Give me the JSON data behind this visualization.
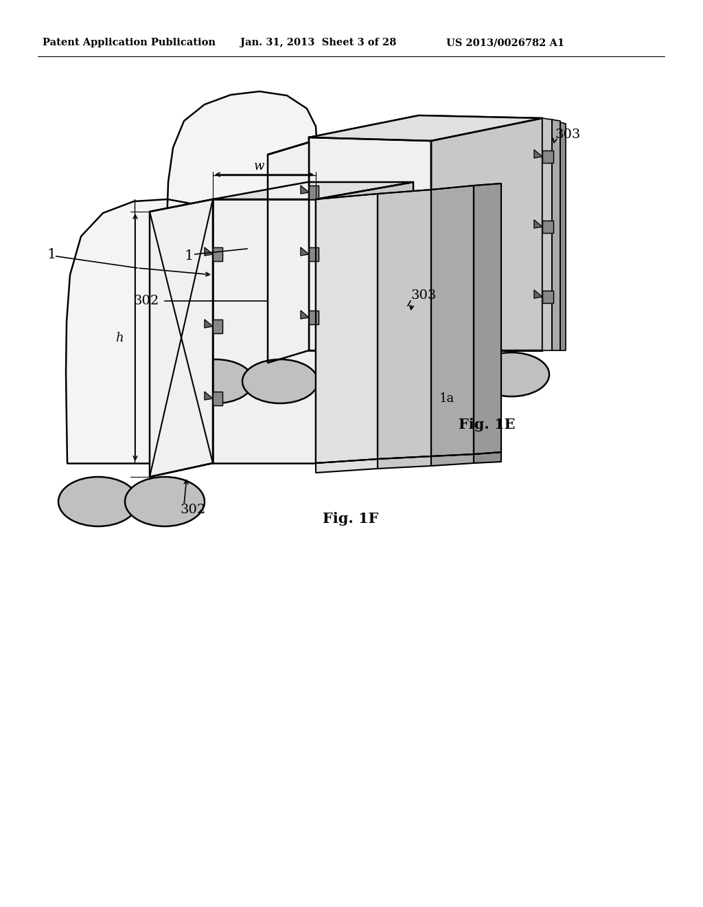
{
  "bg_color": "#ffffff",
  "header_left": "Patent Application Publication",
  "header_mid": "Jan. 31, 2013  Sheet 3 of 28",
  "header_right": "US 2013/0026782 A1",
  "fig1e_label": "Fig. 1E",
  "fig1f_label": "Fig. 1F",
  "lc": "#000000",
  "fill_white": "#ffffff",
  "fill_light": "#f0f0f0",
  "fill_mid": "#e0e0e0",
  "fill_dark": "#c8c8c8",
  "fill_darker": "#aaaaaa",
  "fill_cab": "#f4f4f4"
}
